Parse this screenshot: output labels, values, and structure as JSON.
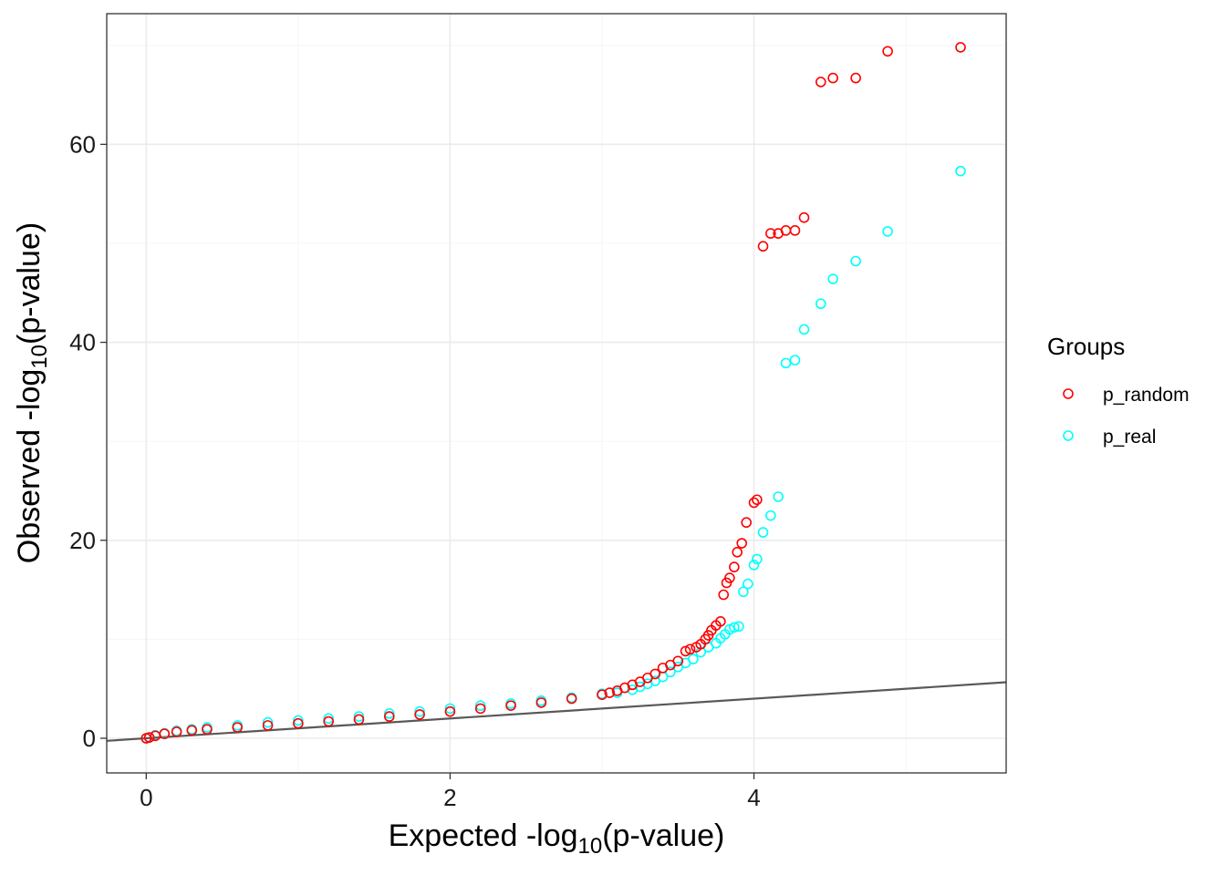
{
  "chart_data": {
    "type": "scatter",
    "xlabel": {
      "prefix": "Expected -log",
      "sub": "10",
      "suffix": "(p-value)"
    },
    "ylabel": {
      "prefix": "Observed -log",
      "sub": "10",
      "suffix": "(p-value)"
    },
    "xlim": [
      -0.26,
      5.66
    ],
    "ylim": [
      -3.5,
      73.2
    ],
    "x_ticks": [
      0,
      2,
      4
    ],
    "y_ticks": [
      0,
      20,
      40,
      60
    ],
    "x_tick_labels": [
      "0",
      "2",
      "4"
    ],
    "y_tick_labels": [
      "0",
      "20",
      "40",
      "60"
    ],
    "grid": true,
    "legend": {
      "title": "Groups",
      "position": "right"
    },
    "reference_line": {
      "slope": 1,
      "intercept": 0,
      "color": "#595959"
    },
    "series": [
      {
        "name": "p_random",
        "color": "#ff0000",
        "points": [
          [
            5.36,
            69.8
          ],
          [
            4.88,
            69.4
          ],
          [
            4.67,
            66.7
          ],
          [
            4.52,
            66.7
          ],
          [
            4.44,
            66.3
          ],
          [
            4.33,
            52.6
          ],
          [
            4.27,
            51.3
          ],
          [
            4.21,
            51.3
          ],
          [
            4.16,
            51.0
          ],
          [
            4.11,
            51.0
          ],
          [
            4.06,
            49.7
          ],
          [
            4.02,
            24.1
          ],
          [
            4.0,
            23.8
          ],
          [
            3.95,
            21.8
          ],
          [
            3.92,
            19.7
          ],
          [
            3.89,
            18.8
          ],
          [
            3.87,
            17.3
          ],
          [
            3.84,
            16.2
          ],
          [
            3.82,
            15.7
          ],
          [
            3.8,
            14.5
          ],
          [
            3.78,
            11.8
          ],
          [
            3.75,
            11.4
          ],
          [
            3.72,
            10.9
          ],
          [
            3.7,
            10.4
          ],
          [
            3.68,
            10.0
          ],
          [
            3.65,
            9.5
          ],
          [
            3.62,
            9.2
          ],
          [
            3.58,
            9.0
          ],
          [
            3.55,
            8.8
          ],
          [
            3.5,
            7.8
          ],
          [
            3.45,
            7.4
          ],
          [
            3.4,
            7.1
          ],
          [
            3.35,
            6.5
          ],
          [
            3.3,
            6.1
          ],
          [
            3.25,
            5.7
          ],
          [
            3.2,
            5.4
          ],
          [
            3.15,
            5.1
          ],
          [
            3.1,
            4.8
          ],
          [
            3.05,
            4.6
          ],
          [
            3.0,
            4.4
          ],
          [
            2.8,
            4.0
          ],
          [
            2.6,
            3.6
          ],
          [
            2.4,
            3.3
          ],
          [
            2.2,
            3.0
          ],
          [
            2.0,
            2.7
          ],
          [
            1.8,
            2.4
          ],
          [
            1.6,
            2.2
          ],
          [
            1.4,
            1.9
          ],
          [
            1.2,
            1.7
          ],
          [
            1.0,
            1.5
          ],
          [
            0.8,
            1.3
          ],
          [
            0.6,
            1.1
          ],
          [
            0.4,
            0.9
          ],
          [
            0.3,
            0.8
          ],
          [
            0.2,
            0.65
          ],
          [
            0.12,
            0.45
          ],
          [
            0.06,
            0.25
          ],
          [
            0.02,
            0.08
          ],
          [
            0.0,
            0.0
          ]
        ]
      },
      {
        "name": "p_real",
        "color": "#00ffff",
        "points": [
          [
            5.36,
            57.3
          ],
          [
            4.88,
            51.2
          ],
          [
            4.67,
            48.2
          ],
          [
            4.52,
            46.4
          ],
          [
            4.44,
            43.9
          ],
          [
            4.33,
            41.3
          ],
          [
            4.27,
            38.2
          ],
          [
            4.21,
            37.9
          ],
          [
            4.16,
            24.4
          ],
          [
            4.11,
            22.5
          ],
          [
            4.06,
            20.8
          ],
          [
            4.02,
            18.1
          ],
          [
            4.0,
            17.5
          ],
          [
            3.96,
            15.6
          ],
          [
            3.93,
            14.8
          ],
          [
            3.9,
            11.3
          ],
          [
            3.87,
            11.2
          ],
          [
            3.84,
            11.0
          ],
          [
            3.81,
            10.5
          ],
          [
            3.78,
            10.1
          ],
          [
            3.75,
            9.6
          ],
          [
            3.7,
            9.2
          ],
          [
            3.65,
            8.7
          ],
          [
            3.6,
            8.0
          ],
          [
            3.55,
            7.6
          ],
          [
            3.5,
            7.2
          ],
          [
            3.45,
            6.7
          ],
          [
            3.4,
            6.2
          ],
          [
            3.35,
            5.8
          ],
          [
            3.3,
            5.5
          ],
          [
            3.25,
            5.2
          ],
          [
            3.2,
            4.9
          ],
          [
            3.1,
            4.6
          ],
          [
            3.0,
            4.5
          ],
          [
            2.8,
            4.1
          ],
          [
            2.6,
            3.8
          ],
          [
            2.4,
            3.5
          ],
          [
            2.2,
            3.3
          ],
          [
            2.0,
            3.0
          ],
          [
            1.8,
            2.7
          ],
          [
            1.6,
            2.5
          ],
          [
            1.4,
            2.2
          ],
          [
            1.2,
            2.0
          ],
          [
            1.0,
            1.8
          ],
          [
            0.8,
            1.6
          ],
          [
            0.6,
            1.3
          ],
          [
            0.4,
            1.1
          ],
          [
            0.3,
            0.9
          ],
          [
            0.2,
            0.75
          ],
          [
            0.12,
            0.5
          ],
          [
            0.06,
            0.3
          ],
          [
            0.02,
            0.1
          ],
          [
            0.0,
            0.0
          ]
        ]
      }
    ]
  }
}
